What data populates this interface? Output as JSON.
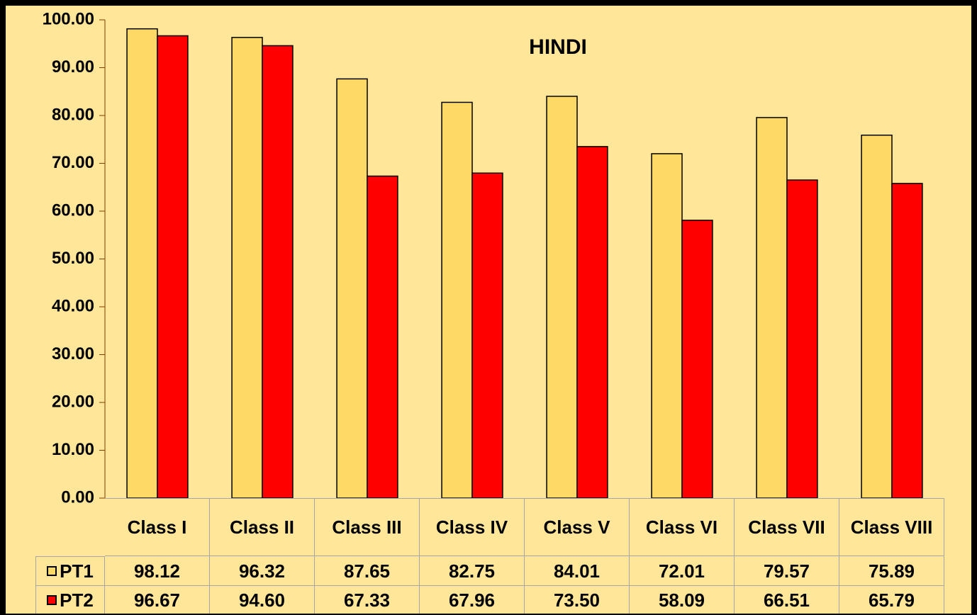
{
  "chart_data": {
    "type": "bar",
    "title": "HINDI",
    "categories": [
      "Class I",
      "Class II",
      "Class III",
      "Class IV",
      "Class V",
      "Class VI",
      "Class VII",
      "Class VIII"
    ],
    "series": [
      {
        "name": "PT1",
        "color": "#FFD966",
        "values": [
          98.12,
          96.32,
          87.65,
          82.75,
          84.01,
          72.01,
          79.57,
          75.89
        ],
        "value_labels": [
          "98.12",
          "96.32",
          "87.65",
          "82.75",
          "84.01",
          "72.01",
          "79.57",
          "75.89"
        ]
      },
      {
        "name": "PT2",
        "color": "#FF0000",
        "values": [
          96.67,
          94.6,
          67.33,
          67.96,
          73.5,
          58.09,
          66.51,
          65.79
        ],
        "value_labels": [
          "96.67",
          "94.60",
          "67.33",
          "67.96",
          "73.50",
          "58.09",
          "66.51",
          "65.79"
        ]
      }
    ],
    "ylim": [
      0,
      100
    ],
    "yticks": [
      {
        "value": 0,
        "label": "0.00"
      },
      {
        "value": 10,
        "label": "10.00"
      },
      {
        "value": 20,
        "label": "20.00"
      },
      {
        "value": 30,
        "label": "30.00"
      },
      {
        "value": 40,
        "label": "40.00"
      },
      {
        "value": 50,
        "label": "50.00"
      },
      {
        "value": 60,
        "label": "60.00"
      },
      {
        "value": 70,
        "label": "70.00"
      },
      {
        "value": 80,
        "label": "80.00"
      },
      {
        "value": 90,
        "label": "90.00"
      },
      {
        "value": 100,
        "label": "100.00"
      }
    ],
    "grid": false
  }
}
